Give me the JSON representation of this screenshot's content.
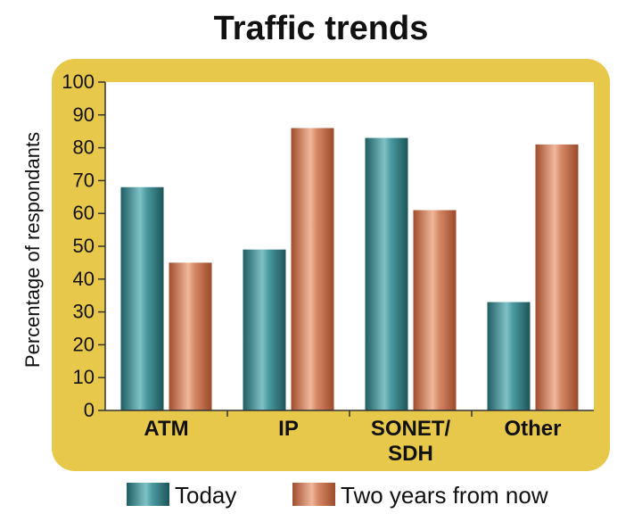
{
  "chart_data": {
    "type": "bar",
    "title": "Traffic trends",
    "xlabel": "",
    "ylabel": "Percentage of respondants",
    "ylim": [
      0,
      100
    ],
    "yticks": [
      0,
      10,
      20,
      30,
      40,
      50,
      60,
      70,
      80,
      90,
      100
    ],
    "categories": [
      [
        "ATM"
      ],
      [
        "IP"
      ],
      [
        "SONET/",
        "SDH"
      ],
      [
        "Other"
      ]
    ],
    "series": [
      {
        "name": "Today",
        "values": [
          68,
          49,
          83,
          33
        ],
        "color": "#2f7f86"
      },
      {
        "name": "Two years from now",
        "values": [
          45,
          86,
          61,
          81
        ],
        "color": "#c9704d"
      }
    ],
    "legend_position": "bottom",
    "grid": false,
    "frame_color": "#e8c84a"
  }
}
